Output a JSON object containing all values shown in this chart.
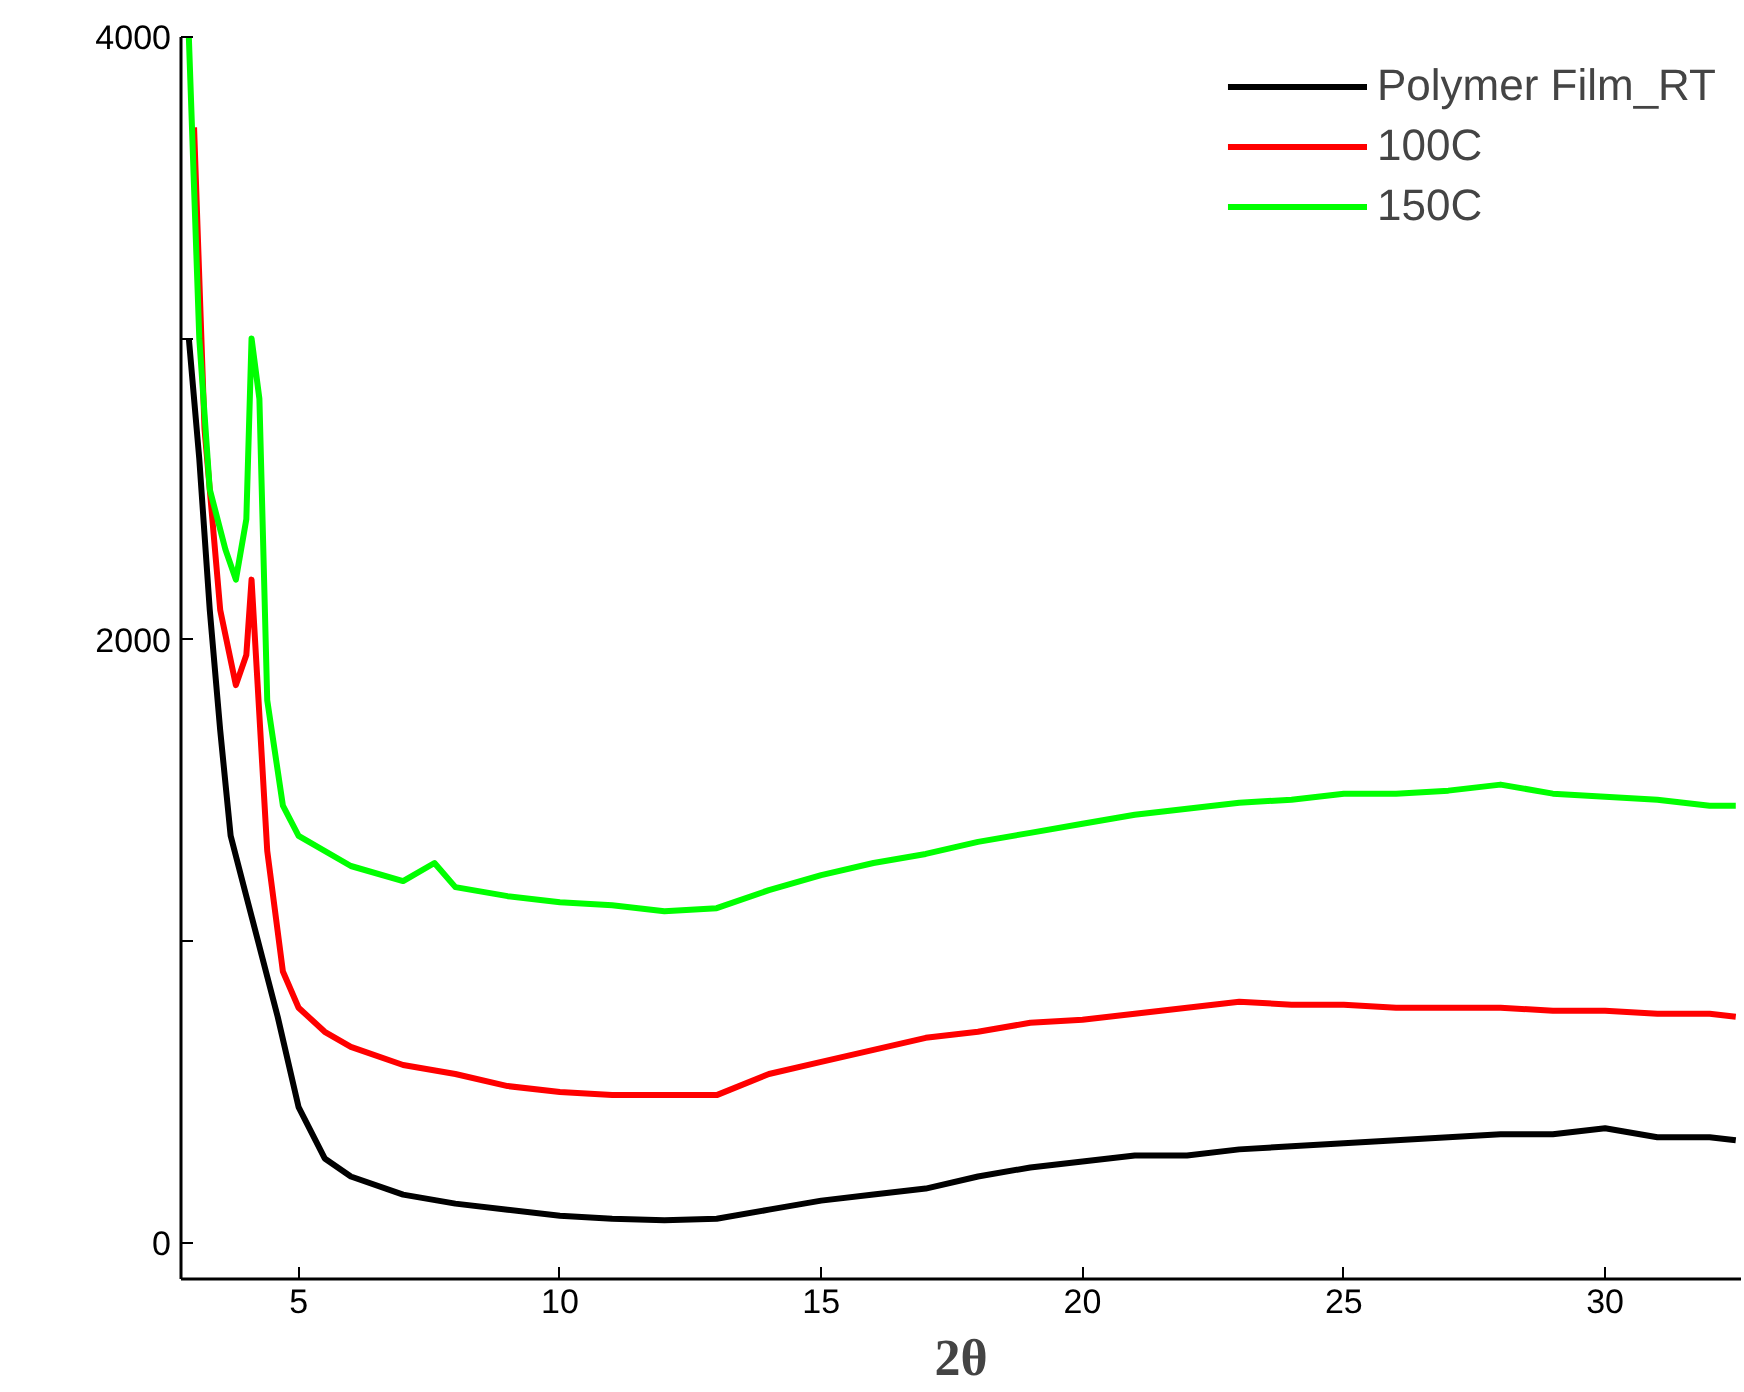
{
  "chart_data": {
    "type": "line",
    "xlabel": "2θ",
    "xlim": [
      2.75,
      32.6
    ],
    "ylim": [
      -120,
      4000
    ],
    "xticks": [
      5,
      10,
      15,
      20,
      25,
      30
    ],
    "yticks": [
      0,
      {
        "value": 1000,
        "label": null
      },
      2000,
      {
        "value": 3000,
        "label": null
      },
      4000
    ],
    "grid": false,
    "legend": "top right",
    "marker": "none",
    "line_style": "solid",
    "series": [
      {
        "name": "Polymer Film_RT",
        "color": "#000000",
        "x": [
          2.9,
          3.1,
          3.3,
          3.5,
          3.7,
          4.0,
          4.3,
          4.6,
          5.0,
          5.5,
          6,
          7,
          8,
          9,
          10,
          11,
          12,
          13,
          14,
          15,
          16,
          17,
          18,
          19,
          20,
          21,
          22,
          23,
          24,
          25,
          26,
          27,
          28,
          29,
          30,
          31,
          32,
          32.5
        ],
        "values": [
          3000,
          2600,
          2100,
          1700,
          1350,
          1150,
          950,
          750,
          450,
          280,
          220,
          160,
          130,
          110,
          90,
          80,
          75,
          80,
          110,
          140,
          160,
          180,
          220,
          250,
          270,
          290,
          290,
          310,
          320,
          330,
          340,
          350,
          360,
          360,
          380,
          350,
          350,
          340
        ]
      },
      {
        "name": "100C",
        "color": "#ff0000",
        "x": [
          3.0,
          3.2,
          3.5,
          3.8,
          4.0,
          4.1,
          4.2,
          4.4,
          4.7,
          5.0,
          5.5,
          6,
          7,
          8,
          9,
          10,
          11,
          12,
          13,
          14,
          15,
          16,
          17,
          18,
          19,
          20,
          21,
          22,
          23,
          24,
          25,
          26,
          27,
          28,
          29,
          30,
          31,
          32,
          32.5
        ],
        "values": [
          3700,
          2700,
          2100,
          1850,
          1950,
          2200,
          1900,
          1300,
          900,
          780,
          700,
          650,
          590,
          560,
          520,
          500,
          490,
          490,
          490,
          560,
          600,
          640,
          680,
          700,
          730,
          740,
          760,
          780,
          800,
          790,
          790,
          780,
          780,
          780,
          770,
          770,
          760,
          760,
          750
        ]
      },
      {
        "name": "150C",
        "color": "#00ff00",
        "x": [
          2.9,
          3.1,
          3.3,
          3.6,
          3.8,
          4.0,
          4.1,
          4.25,
          4.4,
          4.7,
          5,
          6,
          7,
          7.6,
          8,
          9,
          10,
          11,
          12,
          13,
          14,
          15,
          16,
          17,
          18,
          19,
          20,
          21,
          22,
          23,
          24,
          25,
          26,
          27,
          28,
          29,
          30,
          31,
          32,
          32.5
        ],
        "values": [
          4000,
          3000,
          2500,
          2300,
          2200,
          2400,
          3000,
          2800,
          1800,
          1450,
          1350,
          1250,
          1200,
          1260,
          1180,
          1150,
          1130,
          1120,
          1100,
          1110,
          1170,
          1220,
          1260,
          1290,
          1330,
          1360,
          1390,
          1420,
          1440,
          1460,
          1470,
          1490,
          1490,
          1500,
          1520,
          1490,
          1480,
          1470,
          1450,
          1450
        ]
      }
    ]
  }
}
